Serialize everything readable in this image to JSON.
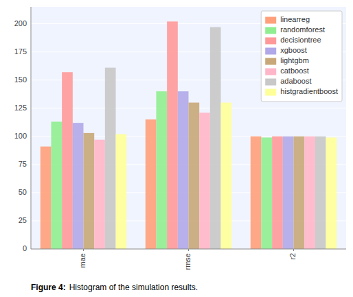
{
  "chart_data": {
    "type": "bar",
    "title": "Figure 4:",
    "subtitle": "Histogram of the simulation results.",
    "categories": [
      "mae",
      "rmse",
      "r2"
    ],
    "series": [
      {
        "name": "linearreg",
        "color": "#FFA07A",
        "values": [
          91,
          115,
          100
        ]
      },
      {
        "name": "randomforest",
        "color": "#90EE90",
        "values": [
          113,
          140,
          99
        ]
      },
      {
        "name": "decisiontree",
        "color": "#FF9999",
        "values": [
          157,
          202,
          100
        ]
      },
      {
        "name": "xgboost",
        "color": "#B0A8E8",
        "values": [
          112,
          140,
          100
        ]
      },
      {
        "name": "lightgbm",
        "color": "#C8A878",
        "values": [
          103,
          130,
          100
        ]
      },
      {
        "name": "catboost",
        "color": "#FFB6C8",
        "values": [
          97,
          121,
          100
        ]
      },
      {
        "name": "adaboost",
        "color": "#C8C8C8",
        "values": [
          161,
          197,
          100
        ]
      },
      {
        "name": "histgradientboost",
        "color": "#FFFF99",
        "values": [
          102,
          130,
          99
        ]
      }
    ],
    "ylim": [
      0,
      215
    ],
    "yticks": [
      0,
      25,
      50,
      75,
      100,
      125,
      150,
      175,
      200
    ],
    "grid": true,
    "legend": "upper right"
  }
}
